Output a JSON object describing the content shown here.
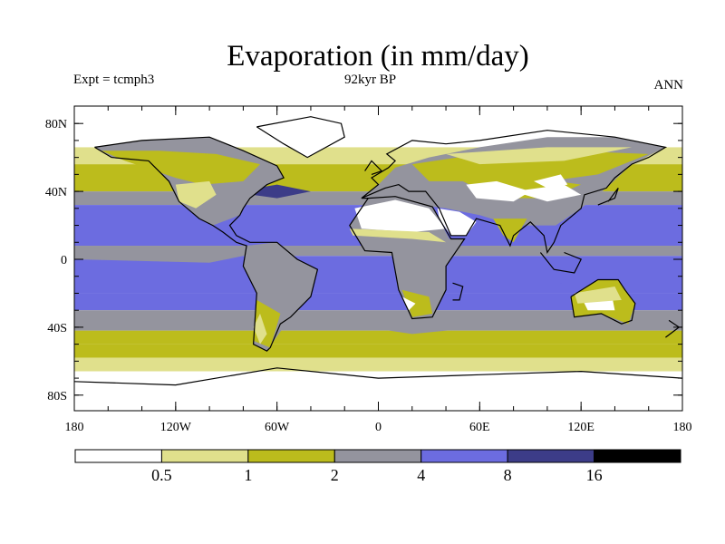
{
  "title": "Evaporation (in mm/day)",
  "experiment": "Expt = tcmph3",
  "period": "92kyr BP",
  "season": "ANN",
  "lat_ticks": [
    {
      "value": 80,
      "label": "80N"
    },
    {
      "value": 40,
      "label": "40N"
    },
    {
      "value": 0,
      "label": "0"
    },
    {
      "value": -40,
      "label": "40S"
    },
    {
      "value": -80,
      "label": "80S"
    }
  ],
  "lon_ticks": [
    {
      "value": -180,
      "label": "180"
    },
    {
      "value": -120,
      "label": "120W"
    },
    {
      "value": -60,
      "label": "60W"
    },
    {
      "value": 0,
      "label": "0"
    },
    {
      "value": 60,
      "label": "60E"
    },
    {
      "value": 120,
      "label": "120E"
    },
    {
      "value": 180,
      "label": "180"
    }
  ],
  "colorbar": {
    "colors": [
      "#ffffff",
      "#e0e08c",
      "#bcbc1c",
      "#94949e",
      "#6c6ce0",
      "#3c3c88",
      "#000000"
    ],
    "labels": [
      "0.5",
      "1",
      "2",
      "4",
      "8",
      "16"
    ]
  },
  "palette": {
    "white": "#ffffff",
    "pale": "#e0e08c",
    "olive": "#bcbc1c",
    "gray": "#94949e",
    "blue": "#6c6ce0",
    "navy": "#3c3c88",
    "coast": "#000000"
  }
}
